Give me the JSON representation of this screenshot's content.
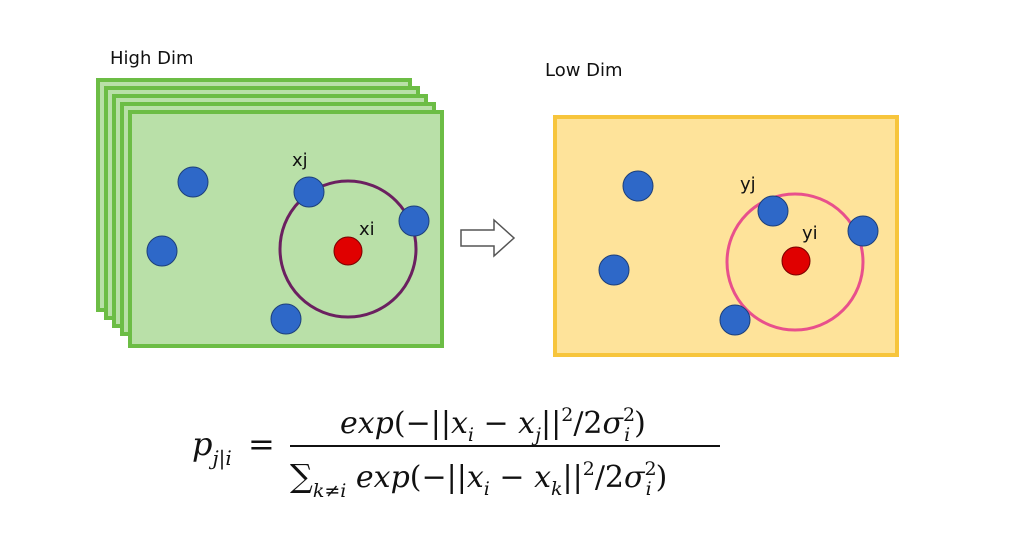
{
  "high_dim": {
    "title": "High Dim",
    "point_i_label": "xi",
    "point_j_label": "xj",
    "colors": {
      "fill": "#b9e0a8",
      "border": "#6cbd45",
      "circle": "#6b2060"
    }
  },
  "low_dim": {
    "title": "Low Dim",
    "point_i_label": "yi",
    "point_j_label": "yj",
    "colors": {
      "fill": "#fee39a",
      "border": "#f7c53c",
      "circle": "#e8508c"
    }
  },
  "point_colors": {
    "neighbor": "#2e68c8",
    "center": "#e00000"
  },
  "arrow_icon": "right-arrow-icon",
  "formula": {
    "lhs": "p",
    "lhs_sub": "j|i",
    "equals": "=",
    "numerator": "exp(−||x_i − x_j||²/2σ_i²)",
    "denominator": "∑_{k≠i} exp(−||x_i − x_k||²/2σ_i²)"
  }
}
